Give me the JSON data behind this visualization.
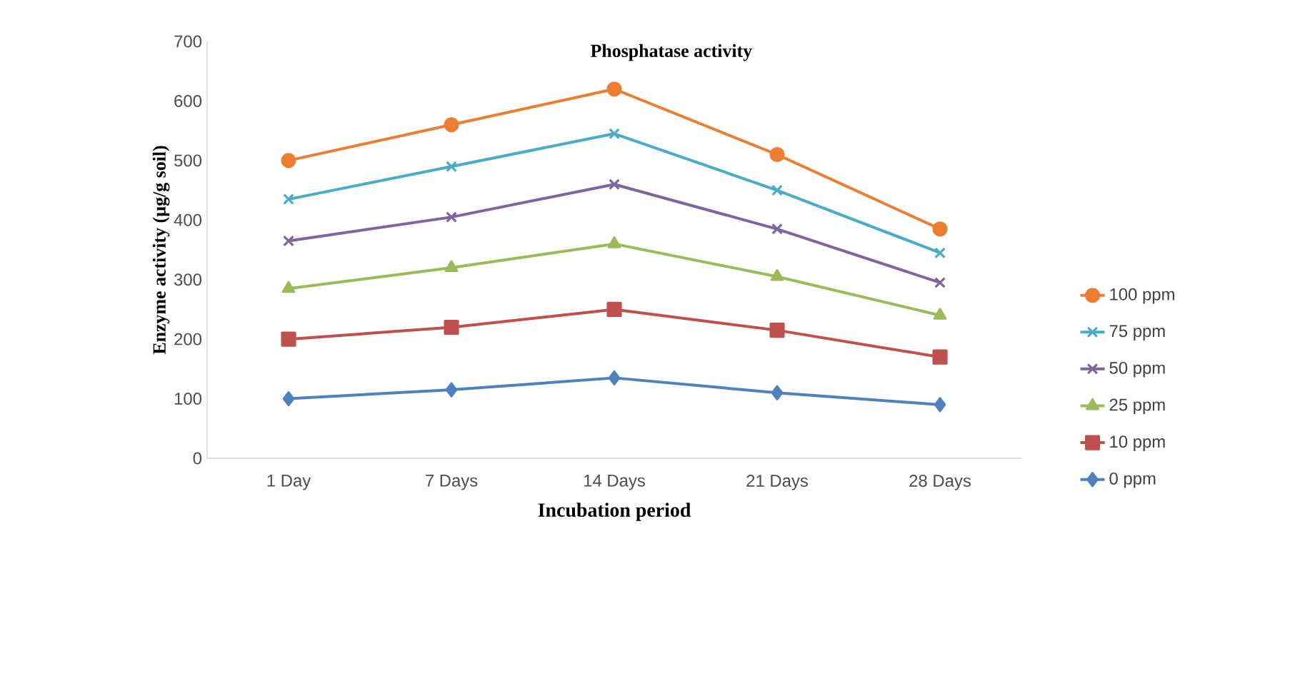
{
  "chart_data": {
    "type": "line",
    "title": "Phosphatase activity",
    "xlabel": "Incubation period",
    "ylabel": "Enzyme activity (µg/g soil)",
    "categories": [
      "1 Day",
      "7 Days",
      "14 Days",
      "21 Days",
      "28  Days"
    ],
    "ylim": [
      0,
      700
    ],
    "yticks": [
      0,
      100,
      200,
      300,
      400,
      500,
      600,
      700
    ],
    "grid": false,
    "legend": "right",
    "line_style": "solid",
    "series": [
      {
        "name": "100 ppm",
        "color": "#ed7d31",
        "marker": "circle",
        "values": [
          500,
          560,
          620,
          510,
          385
        ]
      },
      {
        "name": "75 ppm",
        "color": "#4bacc6",
        "marker": "cross",
        "values": [
          435,
          490,
          545,
          450,
          345
        ]
      },
      {
        "name": "50 ppm",
        "color": "#8064a2",
        "marker": "cross",
        "values": [
          365,
          405,
          460,
          385,
          295
        ]
      },
      {
        "name": "25 ppm",
        "color": "#9bbb59",
        "marker": "triangle",
        "values": [
          285,
          320,
          360,
          305,
          240
        ]
      },
      {
        "name": "10 ppm",
        "color": "#c0504d",
        "marker": "square",
        "values": [
          200,
          220,
          250,
          215,
          170
        ]
      },
      {
        "name": "0 ppm",
        "color": "#4f81bd",
        "marker": "diamond",
        "values": [
          100,
          115,
          135,
          110,
          90
        ]
      }
    ]
  }
}
